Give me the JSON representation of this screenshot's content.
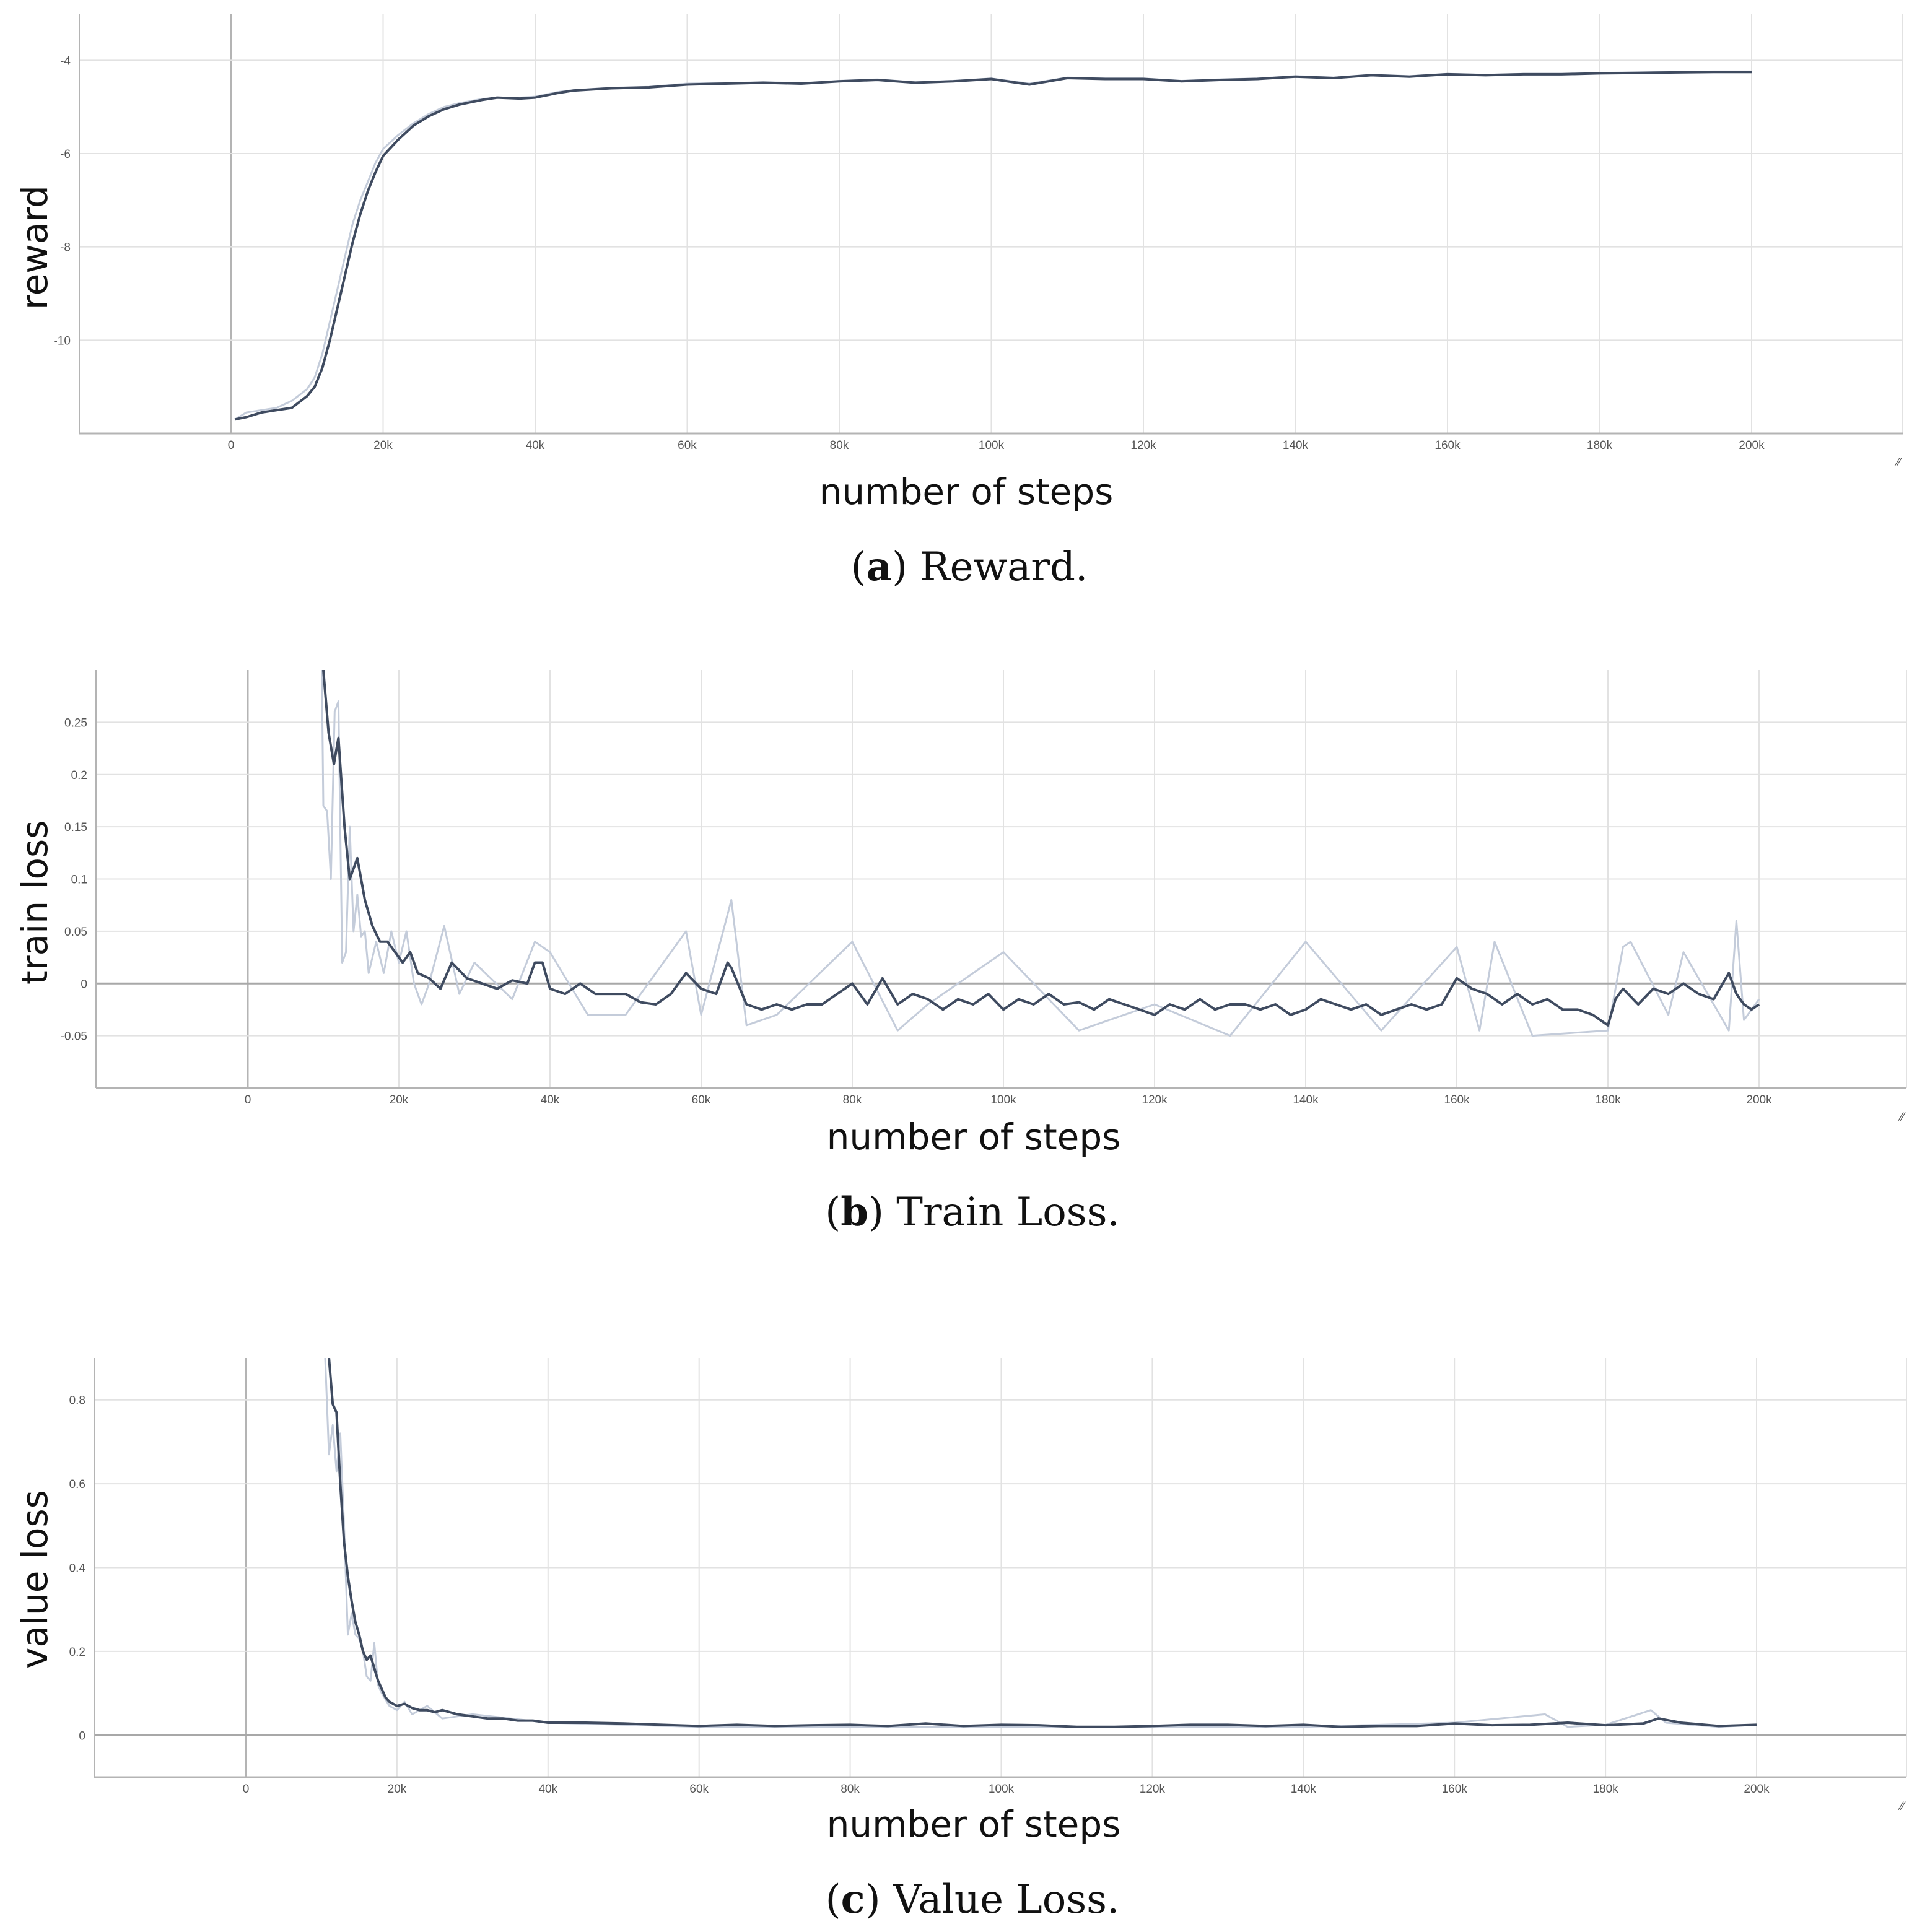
{
  "colors": {
    "smoothed": "#3f4b60",
    "raw": "#c4ccda",
    "grid": "#e2e2e2",
    "axis": "#b4b4b4",
    "zero_line": "#a8a8a8",
    "tick_text": "#555555"
  },
  "panels": [
    {
      "id": "a",
      "ylabel": "reward",
      "xlabel": "number of steps",
      "caption_letter": "a",
      "caption_text": "Reward."
    },
    {
      "id": "b",
      "ylabel": "train loss",
      "xlabel": "number of steps",
      "caption_letter": "b",
      "caption_text": "Train Loss."
    },
    {
      "id": "c",
      "ylabel": "value loss",
      "xlabel": "number of steps",
      "caption_letter": "c",
      "caption_text": "Value Loss."
    }
  ],
  "chart_data": [
    {
      "type": "line",
      "title": "(a) Reward.",
      "xlabel": "number of steps",
      "ylabel": "reward",
      "xlim": [
        -20000,
        220000
      ],
      "ylim": [
        -12,
        -3
      ],
      "x_ticks": [
        0,
        20000,
        40000,
        60000,
        80000,
        100000,
        120000,
        140000,
        160000,
        180000,
        200000
      ],
      "x_tick_labels": [
        "0",
        "20k",
        "40k",
        "60k",
        "80k",
        "100k",
        "120k",
        "140k",
        "160k",
        "180k",
        "200k"
      ],
      "y_ticks": [
        -10,
        -8,
        -6,
        -4
      ],
      "y_tick_labels": [
        "-10",
        "-8",
        "-6",
        "-4"
      ],
      "grid": true,
      "legend": null,
      "series": [
        {
          "name": "smoothed",
          "x": [
            500,
            2000,
            4000,
            6000,
            8000,
            10000,
            11000,
            12000,
            13000,
            14000,
            15000,
            16000,
            17000,
            18000,
            19000,
            20000,
            22000,
            24000,
            26000,
            28000,
            30000,
            33000,
            35000,
            38000,
            40000,
            43000,
            45000,
            50000,
            55000,
            60000,
            65000,
            70000,
            75000,
            80000,
            85000,
            90000,
            95000,
            100000,
            105000,
            110000,
            115000,
            120000,
            125000,
            130000,
            135000,
            140000,
            145000,
            150000,
            155000,
            160000,
            165000,
            170000,
            175000,
            180000,
            185000,
            190000,
            195000,
            200000
          ],
          "values": [
            -11.7,
            -11.65,
            -11.55,
            -11.5,
            -11.45,
            -11.2,
            -11.0,
            -10.6,
            -10.0,
            -9.3,
            -8.6,
            -7.9,
            -7.3,
            -6.8,
            -6.4,
            -6.05,
            -5.7,
            -5.4,
            -5.2,
            -5.05,
            -4.95,
            -4.85,
            -4.8,
            -4.82,
            -4.8,
            -4.7,
            -4.65,
            -4.6,
            -4.58,
            -4.52,
            -4.5,
            -4.48,
            -4.5,
            -4.45,
            -4.42,
            -4.48,
            -4.45,
            -4.4,
            -4.52,
            -4.38,
            -4.4,
            -4.4,
            -4.45,
            -4.42,
            -4.4,
            -4.35,
            -4.38,
            -4.32,
            -4.35,
            -4.3,
            -4.32,
            -4.3,
            -4.3,
            -4.28,
            -4.27,
            -4.26,
            -4.25,
            -4.25
          ]
        },
        {
          "name": "raw",
          "x": [
            500,
            2000,
            4000,
            6000,
            8000,
            10000,
            11000,
            12000,
            13000,
            14000,
            15000,
            16000,
            17000,
            18000,
            19000,
            20000,
            22000,
            24000,
            26000,
            28000,
            30000,
            33000,
            35000,
            38000,
            40000,
            43000,
            45000,
            50000,
            55000,
            60000,
            65000,
            70000,
            75000,
            80000,
            85000,
            90000,
            95000,
            100000,
            105000,
            110000,
            115000,
            120000,
            125000,
            130000,
            135000,
            140000,
            145000,
            150000,
            155000,
            160000,
            165000,
            170000,
            175000,
            180000,
            185000,
            190000,
            195000,
            200000
          ],
          "values": [
            -11.7,
            -11.55,
            -11.5,
            -11.45,
            -11.3,
            -11.05,
            -10.8,
            -10.3,
            -9.6,
            -8.9,
            -8.2,
            -7.5,
            -7.0,
            -6.6,
            -6.2,
            -5.9,
            -5.6,
            -5.35,
            -5.15,
            -5.0,
            -4.92,
            -4.83,
            -4.8,
            -4.8,
            -4.78,
            -4.68,
            -4.64,
            -4.59,
            -4.57,
            -4.5,
            -4.49,
            -4.47,
            -4.49,
            -4.44,
            -4.41,
            -4.47,
            -4.44,
            -4.39,
            -4.5,
            -4.37,
            -4.39,
            -4.39,
            -4.44,
            -4.41,
            -4.39,
            -4.34,
            -4.37,
            -4.31,
            -4.34,
            -4.29,
            -4.31,
            -4.29,
            -4.29,
            -4.27,
            -4.26,
            -4.25,
            -4.24,
            -4.24
          ]
        }
      ]
    },
    {
      "type": "line",
      "title": "(b) Train Loss.",
      "xlabel": "number of steps",
      "ylabel": "train loss",
      "xlim": [
        -20000,
        220000
      ],
      "ylim": [
        -0.1,
        0.3
      ],
      "x_ticks": [
        0,
        20000,
        40000,
        60000,
        80000,
        100000,
        120000,
        140000,
        160000,
        180000,
        200000
      ],
      "x_tick_labels": [
        "0",
        "20k",
        "40k",
        "60k",
        "80k",
        "100k",
        "120k",
        "140k",
        "160k",
        "180k",
        "200k"
      ],
      "y_ticks": [
        -0.05,
        0,
        0.05,
        0.1,
        0.15,
        0.2,
        0.25
      ],
      "y_tick_labels": [
        "-0.05",
        "0",
        "0.05",
        "0.1",
        "0.15",
        "0.2",
        "0.25"
      ],
      "grid": true,
      "legend": null,
      "series": [
        {
          "name": "smoothed",
          "x": [
            10000,
            10700,
            11400,
            12000,
            12800,
            13500,
            14500,
            15500,
            16500,
            17500,
            18500,
            19500,
            20500,
            21500,
            22500,
            24000,
            25500,
            27000,
            29000,
            31000,
            33000,
            35000,
            37000,
            38000,
            39000,
            40000,
            42000,
            44000,
            46000,
            48000,
            50000,
            52000,
            54000,
            56000,
            58000,
            60000,
            62000,
            63500,
            64000,
            66000,
            68000,
            70000,
            72000,
            74000,
            76000,
            78000,
            80000,
            82000,
            84000,
            86000,
            88000,
            90000,
            92000,
            94000,
            96000,
            98000,
            100000,
            102000,
            104000,
            106000,
            108000,
            110000,
            112000,
            114000,
            116000,
            118000,
            120000,
            122000,
            124000,
            126000,
            128000,
            130000,
            132000,
            134000,
            136000,
            138000,
            140000,
            142000,
            144000,
            146000,
            148000,
            150000,
            152000,
            154000,
            156000,
            158000,
            160000,
            162000,
            164000,
            166000,
            168000,
            170000,
            172000,
            174000,
            176000,
            178000,
            180000,
            181000,
            182000,
            184000,
            186000,
            188000,
            190000,
            192000,
            194000,
            196000,
            197000,
            198000,
            199000,
            200000
          ],
          "values": [
            0.3,
            0.24,
            0.21,
            0.235,
            0.15,
            0.1,
            0.12,
            0.08,
            0.055,
            0.04,
            0.04,
            0.03,
            0.02,
            0.03,
            0.01,
            0.005,
            -0.005,
            0.02,
            0.005,
            0.0,
            -0.005,
            0.003,
            0.0,
            0.02,
            0.02,
            -0.005,
            -0.01,
            0.0,
            -0.01,
            -0.01,
            -0.01,
            -0.018,
            -0.02,
            -0.01,
            0.01,
            -0.005,
            -0.01,
            0.02,
            0.015,
            -0.02,
            -0.025,
            -0.02,
            -0.025,
            -0.02,
            -0.02,
            -0.01,
            0.0,
            -0.02,
            0.005,
            -0.02,
            -0.01,
            -0.015,
            -0.025,
            -0.015,
            -0.02,
            -0.01,
            -0.025,
            -0.015,
            -0.02,
            -0.01,
            -0.02,
            -0.018,
            -0.025,
            -0.015,
            -0.02,
            -0.025,
            -0.03,
            -0.02,
            -0.025,
            -0.015,
            -0.025,
            -0.02,
            -0.02,
            -0.025,
            -0.02,
            -0.03,
            -0.025,
            -0.015,
            -0.02,
            -0.025,
            -0.02,
            -0.03,
            -0.025,
            -0.02,
            -0.025,
            -0.02,
            0.005,
            -0.005,
            -0.01,
            -0.02,
            -0.01,
            -0.02,
            -0.015,
            -0.025,
            -0.025,
            -0.03,
            -0.04,
            -0.015,
            -0.005,
            -0.02,
            -0.005,
            -0.01,
            0.0,
            -0.01,
            -0.015,
            0.01,
            -0.01,
            -0.02,
            -0.025,
            -0.02
          ],
          "notes": "smoothed series drops from >0.30 at ~10k steps to ~0 by ~25k, then oscillates between about -0.04 and +0.02 through 200k"
        },
        {
          "name": "raw",
          "x": [
            9800,
            10000,
            10500,
            11000,
            11500,
            12000,
            12500,
            13000,
            13500,
            14000,
            14500,
            15000,
            15500,
            16000,
            17000,
            18000,
            19000,
            20000,
            21000,
            22000,
            23000,
            24000,
            26000,
            28000,
            30000,
            35000,
            38000,
            40000,
            45000,
            50000,
            58000,
            60000,
            64000,
            66000,
            70000,
            80000,
            86000,
            90000,
            100000,
            110000,
            120000,
            130000,
            140000,
            150000,
            160000,
            163000,
            165000,
            170000,
            180000,
            182000,
            183000,
            188000,
            190000,
            196000,
            197000,
            198000,
            200000
          ],
          "values": [
            0.3,
            0.17,
            0.165,
            0.1,
            0.26,
            0.27,
            0.02,
            0.03,
            0.15,
            0.05,
            0.085,
            0.045,
            0.05,
            0.01,
            0.04,
            0.01,
            0.05,
            0.02,
            0.05,
            0.0,
            -0.02,
            0.0,
            0.055,
            -0.01,
            0.02,
            -0.015,
            0.04,
            0.03,
            -0.03,
            -0.03,
            0.05,
            -0.03,
            0.08,
            -0.04,
            -0.03,
            0.04,
            -0.045,
            -0.02,
            0.03,
            -0.045,
            -0.02,
            -0.05,
            0.04,
            -0.045,
            0.035,
            -0.045,
            0.04,
            -0.05,
            -0.045,
            0.035,
            0.04,
            -0.03,
            0.03,
            -0.045,
            0.06,
            -0.035,
            -0.015
          ],
          "notes": "raw series is much noisier (spikes up to ~0.08 at ~64k and ~0.06 at ~197k), same overall trend"
        }
      ]
    },
    {
      "type": "line",
      "title": "(c) Value Loss.",
      "xlabel": "number of steps",
      "ylabel": "value loss",
      "xlim": [
        -20000,
        220000
      ],
      "ylim": [
        -0.1,
        0.9
      ],
      "x_ticks": [
        0,
        20000,
        40000,
        60000,
        80000,
        100000,
        120000,
        140000,
        160000,
        180000,
        200000
      ],
      "x_tick_labels": [
        "0",
        "20k",
        "40k",
        "60k",
        "80k",
        "100k",
        "120k",
        "140k",
        "160k",
        "180k",
        "200k"
      ],
      "y_ticks": [
        0,
        0.2,
        0.4,
        0.6,
        0.8
      ],
      "y_tick_labels": [
        "0",
        "0.2",
        "0.4",
        "0.6",
        "0.8"
      ],
      "grid": true,
      "legend": null,
      "series": [
        {
          "name": "smoothed",
          "x": [
            11000,
            11500,
            12000,
            12500,
            13000,
            13500,
            14000,
            14500,
            15000,
            15500,
            16000,
            16500,
            17000,
            17500,
            18000,
            18500,
            19000,
            19500,
            20000,
            21000,
            22000,
            23000,
            24000,
            25000,
            26000,
            28000,
            30000,
            32000,
            34000,
            36000,
            38000,
            40000,
            45000,
            50000,
            55000,
            60000,
            65000,
            70000,
            75000,
            80000,
            85000,
            90000,
            95000,
            100000,
            105000,
            110000,
            115000,
            120000,
            125000,
            130000,
            135000,
            140000,
            145000,
            150000,
            155000,
            160000,
            165000,
            170000,
            175000,
            180000,
            185000,
            187000,
            190000,
            195000,
            200000
          ],
          "values": [
            0.9,
            0.79,
            0.77,
            0.6,
            0.46,
            0.38,
            0.32,
            0.27,
            0.24,
            0.2,
            0.18,
            0.19,
            0.16,
            0.13,
            0.11,
            0.09,
            0.08,
            0.075,
            0.07,
            0.075,
            0.065,
            0.06,
            0.06,
            0.055,
            0.06,
            0.05,
            0.045,
            0.04,
            0.04,
            0.035,
            0.035,
            0.03,
            0.03,
            0.028,
            0.025,
            0.022,
            0.025,
            0.022,
            0.024,
            0.025,
            0.022,
            0.028,
            0.022,
            0.025,
            0.024,
            0.02,
            0.02,
            0.022,
            0.025,
            0.025,
            0.022,
            0.025,
            0.02,
            0.022,
            0.022,
            0.028,
            0.024,
            0.025,
            0.03,
            0.024,
            0.028,
            0.04,
            0.03,
            0.022,
            0.025
          ]
        },
        {
          "name": "raw",
          "x": [
            10500,
            11000,
            11500,
            12000,
            12500,
            13000,
            13500,
            14000,
            14500,
            15000,
            15500,
            16000,
            16500,
            17000,
            17500,
            18000,
            19000,
            20000,
            21000,
            22000,
            24000,
            26000,
            30000,
            40000,
            60000,
            80000,
            100000,
            120000,
            140000,
            160000,
            172000,
            175000,
            180000,
            186000,
            188000,
            195000,
            200000
          ],
          "values": [
            0.9,
            0.67,
            0.74,
            0.63,
            0.72,
            0.5,
            0.24,
            0.29,
            0.24,
            0.23,
            0.2,
            0.14,
            0.13,
            0.22,
            0.12,
            0.1,
            0.07,
            0.06,
            0.08,
            0.05,
            0.07,
            0.04,
            0.05,
            0.03,
            0.02,
            0.02,
            0.02,
            0.02,
            0.02,
            0.03,
            0.05,
            0.02,
            0.025,
            0.06,
            0.03,
            0.02,
            0.025
          ]
        }
      ]
    }
  ]
}
